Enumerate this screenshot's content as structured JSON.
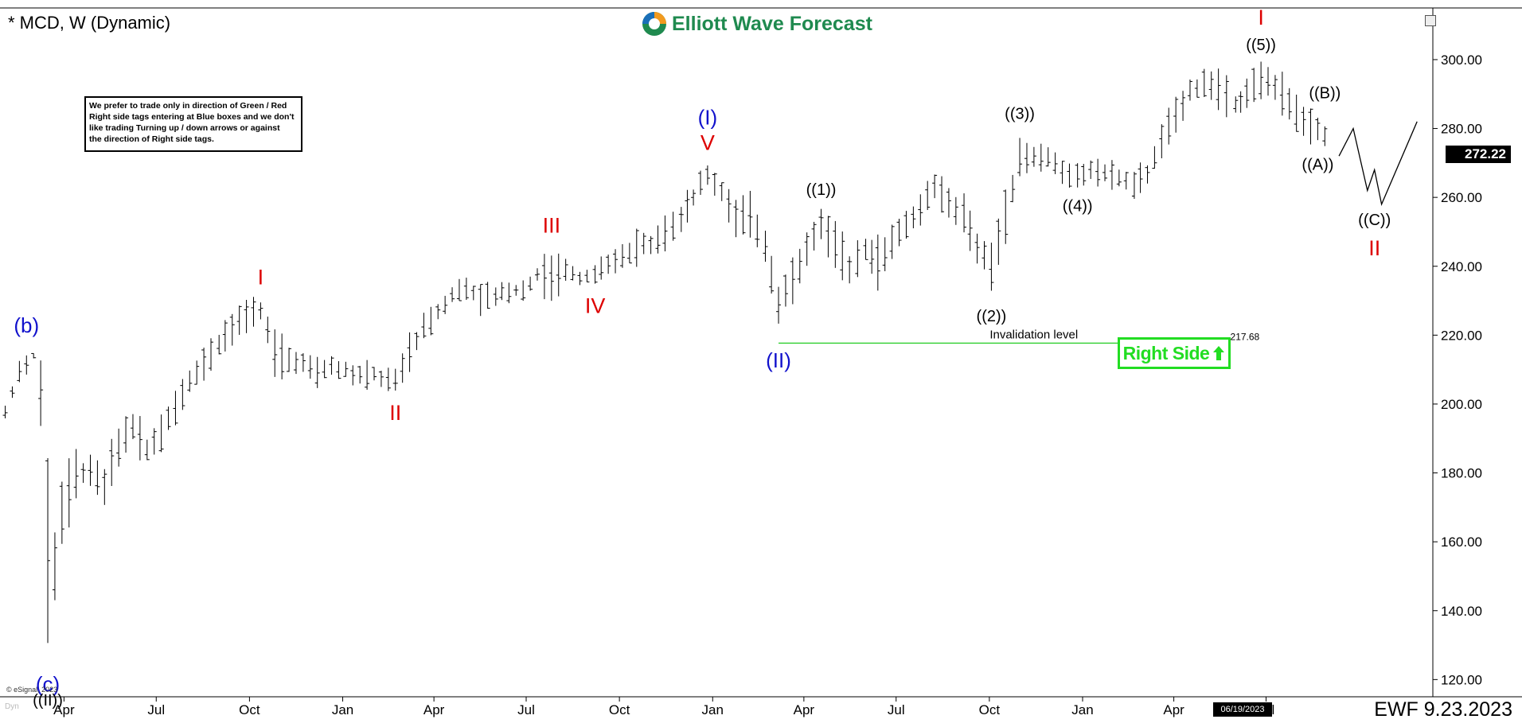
{
  "header": {
    "title": "* MCD, W (Dynamic)",
    "logo_text": "Elliott Wave Forecast"
  },
  "note": {
    "lines": [
      "We prefer to trade only in direction of Green / Red",
      "Right side tags entering at Blue boxes and we don't",
      "like trading Turning up / down arrows or against",
      "the direction of Right side tags."
    ]
  },
  "right_side_tag": {
    "label": "Right Side",
    "color": "#22dd22"
  },
  "footer": {
    "date_stamp": "EWF 9.23.2023",
    "copyright": "© eSignal, 2023",
    "dyn_label": "Dyn"
  },
  "last_price": "272.22",
  "date_flag": "06/19/2023",
  "colors": {
    "red": "#dd0000",
    "blue": "#1111cc",
    "black": "#000000",
    "green_line": "#22cc22"
  },
  "chart_data": {
    "type": "ohlc",
    "title": "",
    "xlabel": "",
    "ylabel": "",
    "ylim": [
      115,
      315
    ],
    "yticks": [
      "120.00",
      "140.00",
      "160.00",
      "180.00",
      "200.00",
      "220.00",
      "240.00",
      "260.00",
      "280.00",
      "300.00"
    ],
    "xticks": [
      "Apr",
      "Jul",
      "Oct",
      "Jan",
      "Apr",
      "Jul",
      "Oct",
      "Jan",
      "Apr",
      "Jul",
      "Oct",
      "Jan",
      "Apr",
      "Jul"
    ],
    "ohlc_points": [
      [
        "2020-02-03",
        200,
        196
      ],
      [
        "2020-02-17",
        214,
        204
      ],
      [
        "2020-03-02",
        217,
        211
      ],
      [
        "2020-03-09",
        216,
        190
      ],
      [
        "2020-03-16",
        192,
        124
      ],
      [
        "2020-03-23",
        170,
        136
      ],
      [
        "2020-03-30",
        183,
        155
      ],
      [
        "2020-04-13",
        188,
        172
      ],
      [
        "2020-04-27",
        186,
        176
      ],
      [
        "2020-05-11",
        183,
        170
      ],
      [
        "2020-05-25",
        196,
        180
      ],
      [
        "2020-06-08",
        202,
        185
      ],
      [
        "2020-06-22",
        192,
        180
      ],
      [
        "2020-07-06",
        200,
        183
      ],
      [
        "2020-07-20",
        207,
        192
      ],
      [
        "2020-08-03",
        214,
        200
      ],
      [
        "2020-08-17",
        218,
        205
      ],
      [
        "2020-09-01",
        224,
        212
      ],
      [
        "2020-09-14",
        228,
        216
      ],
      [
        "2020-09-28",
        231,
        220
      ],
      [
        "2020-10-12",
        232,
        222
      ],
      [
        "2020-10-26",
        222,
        208
      ],
      [
        "2020-11-09",
        219,
        207
      ],
      [
        "2020-11-23",
        216,
        208
      ],
      [
        "2020-12-07",
        214,
        205
      ],
      [
        "2020-12-21",
        216,
        206
      ],
      [
        "2021-01-04",
        214,
        205
      ],
      [
        "2021-01-18",
        213,
        203
      ],
      [
        "2021-02-01",
        212,
        205
      ],
      [
        "2021-02-22",
        210,
        203
      ],
      [
        "2021-03-08",
        222,
        208
      ],
      [
        "2021-03-22",
        227,
        218
      ],
      [
        "2021-04-05",
        231,
        222
      ],
      [
        "2021-04-19",
        236,
        228
      ],
      [
        "2021-05-03",
        238,
        230
      ],
      [
        "2021-05-17",
        236,
        226
      ],
      [
        "2021-06-01",
        235,
        228
      ],
      [
        "2021-06-14",
        237,
        229
      ],
      [
        "2021-06-28",
        237,
        230
      ],
      [
        "2021-07-12",
        241,
        234
      ],
      [
        "2021-07-26",
        247,
        226
      ],
      [
        "2021-08-09",
        244,
        233
      ],
      [
        "2021-08-23",
        241,
        233
      ],
      [
        "2021-09-07",
        241,
        234
      ],
      [
        "2021-09-20",
        244,
        236
      ],
      [
        "2021-10-04",
        248,
        238
      ],
      [
        "2021-10-18",
        251,
        240
      ],
      [
        "2021-11-01",
        252,
        242
      ],
      [
        "2021-11-15",
        256,
        245
      ],
      [
        "2021-12-01",
        260,
        248
      ],
      [
        "2021-12-13",
        266,
        255
      ],
      [
        "2021-12-27",
        271,
        262
      ],
      [
        "2022-01-10",
        268,
        256
      ],
      [
        "2022-01-24",
        260,
        248
      ],
      [
        "2022-02-07",
        262,
        248
      ],
      [
        "2022-02-22",
        255,
        238
      ],
      [
        "2022-03-07",
        240,
        218
      ],
      [
        "2022-03-21",
        245,
        227
      ],
      [
        "2022-04-04",
        252,
        238
      ],
      [
        "2022-04-18",
        258,
        246
      ],
      [
        "2022-05-02",
        254,
        240
      ],
      [
        "2022-05-16",
        248,
        230
      ],
      [
        "2022-06-01",
        252,
        238
      ],
      [
        "2022-06-13",
        250,
        232
      ],
      [
        "2022-06-27",
        255,
        240
      ],
      [
        "2022-07-11",
        258,
        246
      ],
      [
        "2022-07-25",
        262,
        252
      ],
      [
        "2022-08-08",
        268,
        258
      ],
      [
        "2022-08-22",
        265,
        252
      ],
      [
        "2022-09-06",
        262,
        248
      ],
      [
        "2022-09-19",
        252,
        238
      ],
      [
        "2022-10-03",
        250,
        230
      ],
      [
        "2022-10-17",
        264,
        245
      ],
      [
        "2022-10-31",
        280,
        262
      ],
      [
        "2022-11-14",
        277,
        266
      ],
      [
        "2022-11-28",
        276,
        268
      ],
      [
        "2022-12-12",
        272,
        262
      ],
      [
        "2022-12-27",
        270,
        262
      ],
      [
        "2023-01-09",
        273,
        264
      ],
      [
        "2023-01-23",
        272,
        262
      ],
      [
        "2023-02-06",
        270,
        262
      ],
      [
        "2023-02-21",
        268,
        260
      ],
      [
        "2023-03-06",
        272,
        262
      ],
      [
        "2023-03-20",
        282,
        270
      ],
      [
        "2023-04-03",
        290,
        278
      ],
      [
        "2023-04-17",
        296,
        286
      ],
      [
        "2023-05-01",
        299,
        288
      ],
      [
        "2023-05-15",
        298,
        284
      ],
      [
        "2023-06-01",
        294,
        280
      ],
      [
        "2023-06-12",
        296,
        284
      ],
      [
        "2023-06-26",
        300,
        288
      ],
      [
        "2023-07-10",
        299,
        286
      ],
      [
        "2023-07-24",
        294,
        282
      ],
      [
        "2023-08-07",
        288,
        276
      ],
      [
        "2023-08-21",
        286,
        274
      ],
      [
        "2023-09-05",
        282,
        270
      ]
    ],
    "annotations": [
      {
        "text": "(b)",
        "x": "2020-02-24",
        "y": 218,
        "color": "blue",
        "pos": "above"
      },
      {
        "text": "(c)",
        "x": "2020-03-16",
        "y": 124,
        "color": "blue",
        "pos": "below"
      },
      {
        "text": "((II))",
        "x": "2020-03-16",
        "y": 124,
        "color": "black",
        "pos": "below2"
      },
      {
        "text": "I",
        "x": "2020-10-12",
        "y": 232,
        "color": "red",
        "pos": "above"
      },
      {
        "text": "II",
        "x": "2021-02-22",
        "y": 203,
        "color": "red",
        "pos": "below"
      },
      {
        "text": "III",
        "x": "2021-07-26",
        "y": 247,
        "color": "red",
        "pos": "above"
      },
      {
        "text": "IV",
        "x": "2021-09-07",
        "y": 234,
        "color": "red",
        "pos": "below"
      },
      {
        "text": "V",
        "x": "2021-12-27",
        "y": 271,
        "color": "red",
        "pos": "above"
      },
      {
        "text": "(I)",
        "x": "2021-12-27",
        "y": 271,
        "color": "blue",
        "pos": "above2"
      },
      {
        "text": "(II)",
        "x": "2022-03-07",
        "y": 218,
        "color": "blue",
        "pos": "below"
      },
      {
        "text": "((1))",
        "x": "2022-04-18",
        "y": 258,
        "color": "black",
        "pos": "above"
      },
      {
        "text": "((2))",
        "x": "2022-10-03",
        "y": 230,
        "color": "black",
        "pos": "below"
      },
      {
        "text": "((3))",
        "x": "2022-10-31",
        "y": 280,
        "color": "black",
        "pos": "above"
      },
      {
        "text": "((4))",
        "x": "2022-12-27",
        "y": 262,
        "color": "black",
        "pos": "below"
      },
      {
        "text": "((5))",
        "x": "2023-06-26",
        "y": 300,
        "color": "black",
        "pos": "above"
      },
      {
        "text": "I",
        "x": "2023-06-26",
        "y": 300,
        "color": "red",
        "pos": "above2"
      },
      {
        "text": "((A))",
        "x": "2023-08-21",
        "y": 274,
        "color": "black",
        "pos": "below"
      },
      {
        "text": "((B))",
        "x": "2023-08-28",
        "y": 286,
        "color": "black",
        "pos": "above"
      },
      {
        "text": "((C))",
        "x": "2023-10-16",
        "y": 258,
        "color": "black",
        "pos": "below"
      },
      {
        "text": "II",
        "x": "2023-10-16",
        "y": 258,
        "color": "red",
        "pos": "below2"
      }
    ],
    "projection_path": [
      [
        "2023-09-11",
        272
      ],
      [
        "2023-09-25",
        280
      ],
      [
        "2023-10-09",
        262
      ],
      [
        "2023-10-16",
        268
      ],
      [
        "2023-10-23",
        258
      ],
      [
        "2023-11-27",
        282
      ]
    ],
    "invalidation": {
      "label": "Invalidation level",
      "value": 217.68,
      "value_label": "217.68",
      "from": "2022-03-07",
      "to": "2023-05-22"
    },
    "x_domain": [
      "2020-02-01",
      "2023-11-30"
    ]
  }
}
